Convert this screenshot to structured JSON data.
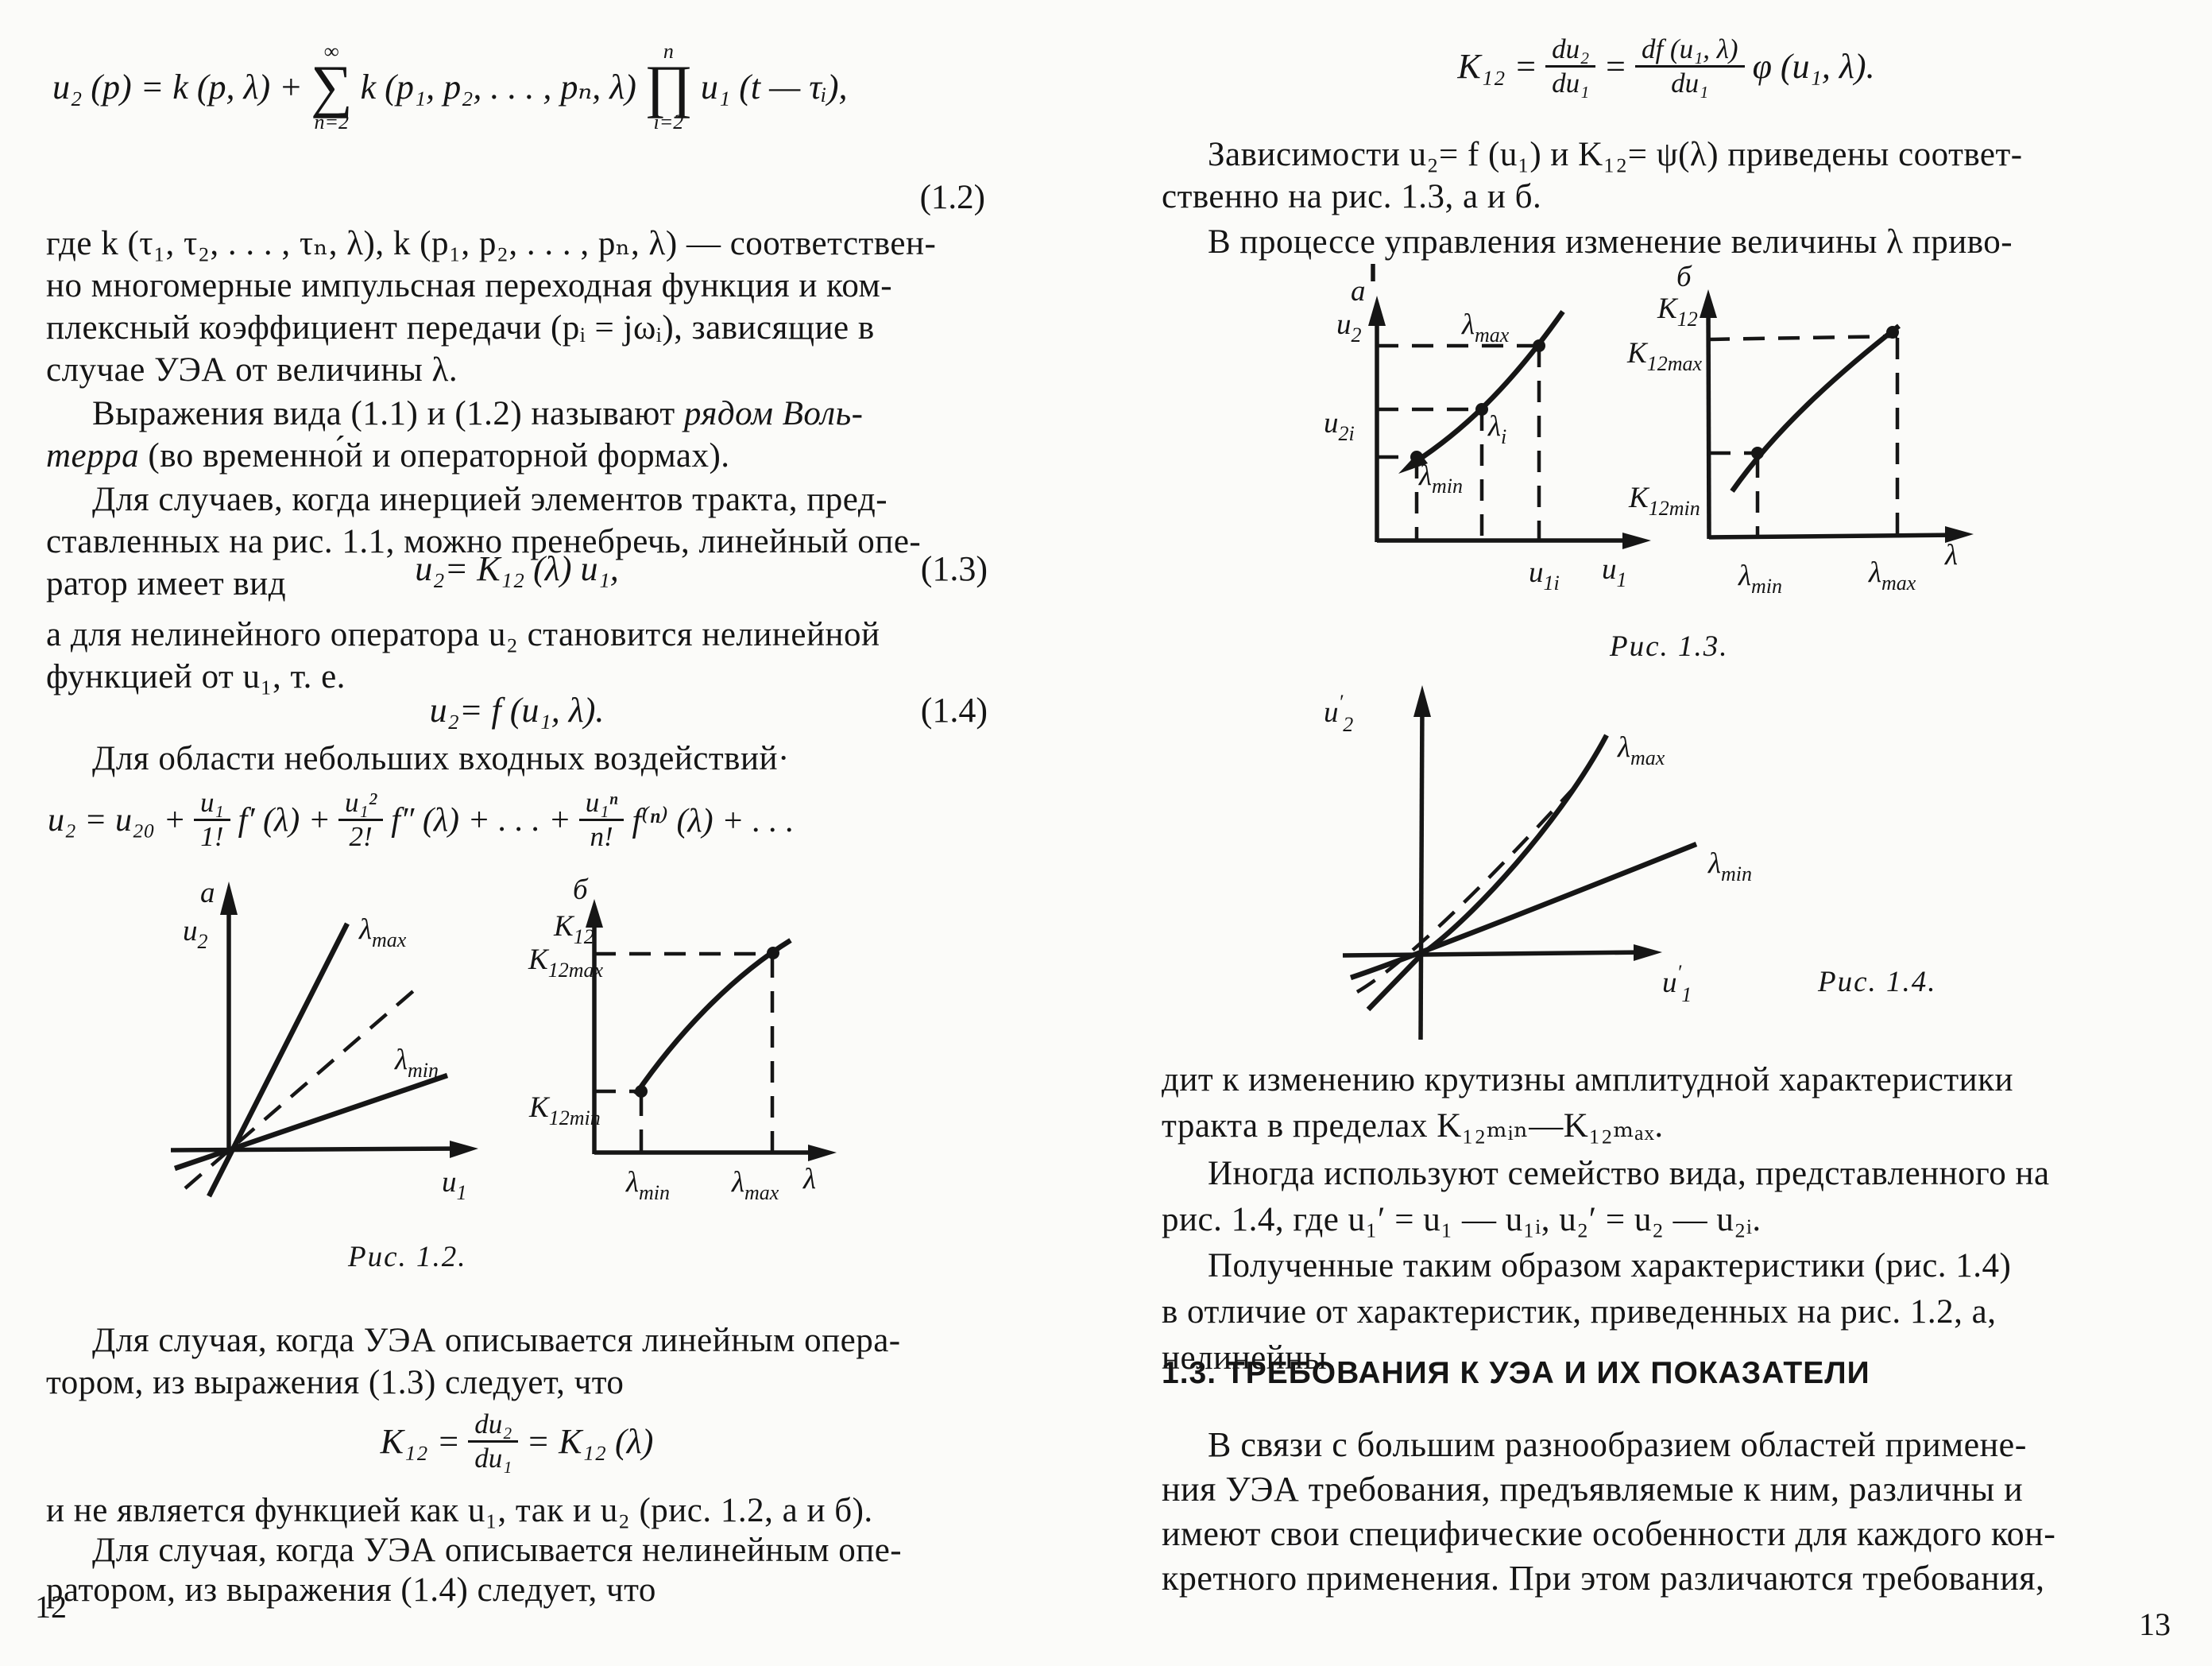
{
  "left": {
    "eq12": {
      "pre": "u₂ (p) = k (p, λ) +",
      "sum_top": "∞",
      "sum": "∑",
      "sum_bot": "n=2",
      "mid": "k (p₁,  p₂,  . . . ,  pₙ,  λ)",
      "prod_top": "n",
      "prod": "∏",
      "prod_bot": "i=2",
      "post": "u₁ (t — τᵢ),",
      "num": "(1.2)"
    },
    "para_gde": [
      "где k (τ₁, τ₂, . . . , τₙ, λ), k (p₁, p₂, . . . , pₙ, λ) — соответствен-",
      "но многомерные импульсная переходная функция и ком-",
      "плексный коэффициент передачи (pᵢ = jωᵢ), зависящие  в",
      "случае УЭА от величины λ."
    ],
    "para_vyr": {
      "l1_pre": "Выражения вида (1.1) и (1.2) называют ",
      "l1_it": "рядом Воль-",
      "l2_it": "терра",
      "l2_post": " (во временно́й и операторной формах)."
    },
    "para_dlya1": [
      "Для случаев, когда инерцией элементов тракта, пред-",
      "ставленных на рис. 1.1, можно пренебречь, линейный опе-",
      "ратор имеет вид"
    ],
    "eq13": {
      "body": "u₂= K₁₂ (λ) u₁,",
      "num": "(1.3)"
    },
    "para_a": [
      "а для нелинейного оператора  u₂  становится  нелинейной",
      "функцией от u₁, т. е."
    ],
    "eq14": {
      "body": "u₂= f (u₁, λ).",
      "num": "(1.4)"
    },
    "line_dlya_obl": [
      "Для области небольших входных воздействий·"
    ],
    "taylor": {
      "t1": "u₂ = u₂₀ +",
      "f1n": "u₁",
      "f1d": "1!",
      "t2": "f′ (λ) +",
      "f2n": "u₁²",
      "f2d": "2!",
      "t3": "f″ (λ) + . . . +",
      "f3n": "u₁ⁿ",
      "f3d": "n!",
      "t4": "f⁽ⁿ⁾ (λ) + . . ."
    },
    "fig12": {
      "caption": "Рис.  1.2.",
      "a": {
        "panel": "а",
        "y": {
          "m": "u",
          "s": "2"
        },
        "lmax": {
          "m": "λ",
          "s": "max"
        },
        "lmin": {
          "m": "λ",
          "s": "min"
        },
        "x": {
          "m": "u",
          "s": "1"
        }
      },
      "b": {
        "panel": "б",
        "y": {
          "m": "K",
          "s": "12"
        },
        "ymax": {
          "m": "K",
          "s": "12max"
        },
        "ymin": {
          "m": "K",
          "s": "12min"
        },
        "xmin": {
          "m": "λ",
          "s": "min"
        },
        "xmax": {
          "m": "λ",
          "s": "max"
        },
        "x": {
          "m": "λ",
          "s": ""
        }
      }
    },
    "para_sluch1": [
      "Для случая, когда УЭА описывается линейным опера-",
      "тором, из выражения (1.3) следует, что"
    ],
    "eqk12": {
      "lhs": "K₁₂ =",
      "fn": "du₂",
      "fd": "du₁",
      "rhs": "= K₁₂ (λ)"
    },
    "para_ne": [
      "и не является функцией как u₁, так и u₂ (рис. 1.2, а и б)."
    ],
    "para_sluch2": [
      "Для случая, когда УЭА описывается нелинейным опе-",
      "ратором, из выражения (1.4) следует, что"
    ],
    "page_number": "12"
  },
  "right": {
    "eqtop": {
      "lhs": "K₁₂ =",
      "f1n": "du₂",
      "f1d": "du₁",
      "eq": "=",
      "f2n": "df (u₁,  λ)",
      "f2d": "du₁",
      "rhs": "φ (u₁,  λ)."
    },
    "para_zav": [
      "Зависимости u₂= f (u₁) и K₁₂= ψ(λ) приведены соответ-",
      "ственно на рис. 1.3, а и б."
    ],
    "line_v": [
      "В процессе управления изменение величины λ приво-"
    ],
    "fig13": {
      "caption": "Рис.  1.3.",
      "a": {
        "panel": "а",
        "y": {
          "m": "u",
          "s": "2"
        },
        "lmax": {
          "m": "λ",
          "s": "max"
        },
        "li": {
          "m": "λ",
          "s": "i"
        },
        "lmin": {
          "m": "λ",
          "s": "min"
        },
        "y2i": {
          "m": "u",
          "s": "2i"
        },
        "x1i": {
          "m": "u",
          "s": "1i"
        },
        "x": {
          "m": "u",
          "s": "1"
        }
      },
      "b": {
        "panel": "б",
        "y": {
          "m": "K",
          "s": "12"
        },
        "ymax": {
          "m": "K",
          "s": "12max"
        },
        "ymin": {
          "m": "K",
          "s": "12min"
        },
        "xmin": {
          "m": "λ",
          "s": "min"
        },
        "xmax": {
          "m": "λ",
          "s": "max"
        },
        "x": {
          "m": "λ",
          "s": ""
        }
      }
    },
    "fig14": {
      "caption": "Рис.  1.4.",
      "y": {
        "m": "u",
        "p": "′",
        "s": "2"
      },
      "x": {
        "m": "u",
        "p": "′",
        "s": "1"
      },
      "lmax": {
        "m": "λ",
        "s": "max"
      },
      "lmin": {
        "m": "λ",
        "s": "min"
      }
    },
    "para_dit": [
      "дит к изменению крутизны амплитудной характеристики",
      "тракта в пределах K₁₂ₘᵢₙ—K₁₂ₘₐₓ."
    ],
    "para_inogda": [
      "Иногда используют семейство вида, представленного на",
      "рис. 1.4,  где  u₁′ = u₁ — u₁ᵢ,  u₂′ = u₂ — u₂ᵢ."
    ],
    "para_poluch": [
      "Полученные таким образом характеристики (рис. 1.4)",
      "в отличие от характеристик,  приведенных  на  рис. 1.2, а,",
      "нелинейны."
    ],
    "heading": "1.3.  ТРЕБОВАНИЯ  К  УЭА  И  ИХ  ПОКАЗАТЕЛИ",
    "para_svyazi": [
      "В связи с большим разнообразием областей примене-",
      "ния УЭА требования, предъявляемые к ним, различны  и",
      "имеют свои специфические особенности для каждого кон-",
      "кретного применения. При этом различаются требования,",
      ""
    ],
    "page_number": "13"
  }
}
